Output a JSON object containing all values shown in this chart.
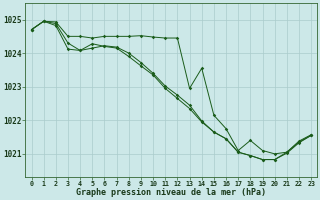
{
  "title": "Graphe pression niveau de la mer (hPa)",
  "background_color": "#cce8e8",
  "grid_color": "#aacccc",
  "line_color": "#1a5c1a",
  "x_labels": [
    "0",
    "1",
    "2",
    "3",
    "4",
    "5",
    "6",
    "7",
    "8",
    "9",
    "10",
    "11",
    "12",
    "13",
    "14",
    "15",
    "16",
    "17",
    "18",
    "19",
    "20",
    "21",
    "22",
    "23"
  ],
  "ylim": [
    1020.3,
    1025.5
  ],
  "yticks": [
    1021,
    1022,
    1023,
    1024,
    1025
  ],
  "figsize": [
    3.2,
    2.0
  ],
  "dpi": 100,
  "series": [
    [
      1024.7,
      1024.95,
      1024.93,
      1024.5,
      1024.5,
      1024.45,
      1024.5,
      1024.5,
      1024.5,
      1024.52,
      1024.48,
      1024.45,
      1024.45,
      1022.95,
      1023.55,
      1022.15,
      1021.75,
      1021.1,
      1021.4,
      1021.1,
      1021.0,
      1021.05,
      1021.38,
      1021.57
    ],
    [
      1024.7,
      1024.95,
      1024.82,
      1024.12,
      1024.08,
      1024.28,
      1024.2,
      1024.15,
      1023.9,
      1023.62,
      1023.35,
      1022.95,
      1022.65,
      1022.35,
      1021.95,
      1021.65,
      1021.45,
      1021.05,
      1020.95,
      1020.83,
      1020.83,
      1021.05,
      1021.35,
      1021.55
    ],
    [
      1024.7,
      1024.95,
      1024.88,
      1024.3,
      1024.08,
      1024.15,
      1024.22,
      1024.18,
      1024.0,
      1023.72,
      1023.4,
      1023.02,
      1022.75,
      1022.45,
      1021.98,
      1021.65,
      1021.45,
      1021.05,
      1020.95,
      1020.83,
      1020.83,
      1021.02,
      1021.33,
      1021.55
    ]
  ]
}
